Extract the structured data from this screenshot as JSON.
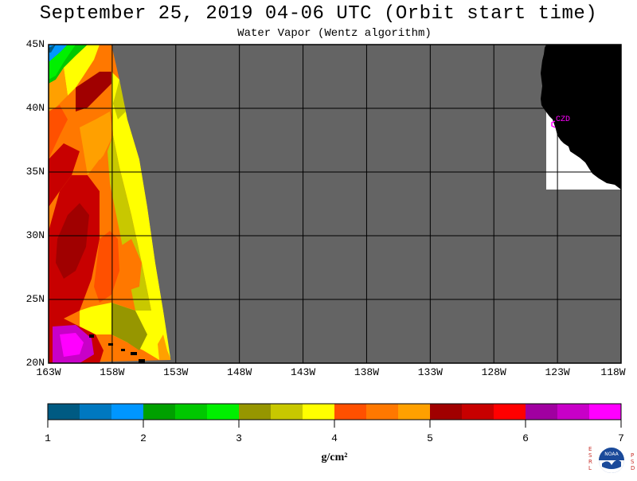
{
  "header": {
    "title": "September 25, 2019  04-06 UTC  (Orbit start time)",
    "subtitle": "Water Vapor (Wentz algorithm)"
  },
  "map": {
    "latitude_labels": [
      "45N",
      "40N",
      "35N",
      "30N",
      "25N",
      "20N"
    ],
    "longitude_labels": [
      "163W",
      "158W",
      "153W",
      "148W",
      "143W",
      "138W",
      "133W",
      "128W",
      "123W",
      "118W"
    ],
    "station_label": "CZD",
    "colors": {
      "no_data": "#646464",
      "land": "#000000",
      "grid": "#000000",
      "station": "#ff00ff"
    }
  },
  "colorbar": {
    "tick_labels": [
      "1",
      "2",
      "3",
      "4",
      "5",
      "6",
      "7"
    ],
    "units": "g/cm²",
    "colors": [
      "#005a82",
      "#0078c0",
      "#0096ff",
      "#00a000",
      "#00c800",
      "#00f000",
      "#969600",
      "#c8c800",
      "#ffff00",
      "#ff5000",
      "#ff7800",
      "#ffa000",
      "#a00000",
      "#c80000",
      "#ff0000",
      "#a000a0",
      "#c800c8",
      "#ff00ff"
    ]
  },
  "logo": {
    "left_letters": [
      "E",
      "S",
      "R",
      "L"
    ],
    "right_letters": [
      "P",
      "S",
      "D"
    ],
    "label": "NOAA"
  }
}
